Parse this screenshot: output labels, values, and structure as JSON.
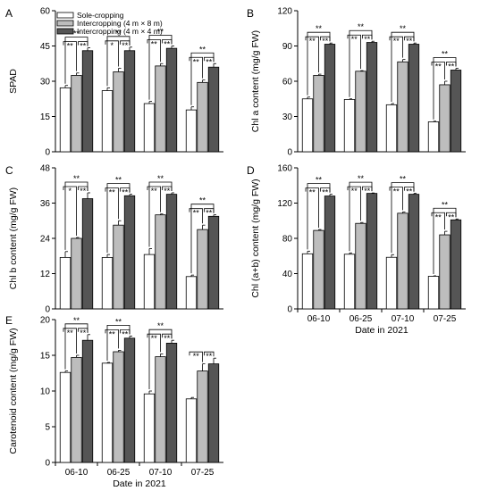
{
  "figure": {
    "legend": [
      {
        "label": "Sole-cropping",
        "color": "#ffffff"
      },
      {
        "label": "Intercropping (4 m × 8 m)",
        "color": "#bdbdbd"
      },
      {
        "label": "Intercropping (4 m × 4 m)",
        "color": "#555555"
      }
    ],
    "xlabel": "Date in 2021",
    "categories": [
      "06-10",
      "06-25",
      "07-10",
      "07-25"
    ]
  },
  "chart_data": [
    {
      "panel": "A",
      "type": "bar",
      "ylabel": "SPAD",
      "ylim": [
        0,
        60
      ],
      "yticks": [
        0,
        15,
        30,
        45,
        60
      ],
      "categories": [
        "06-10",
        "06-25",
        "07-10",
        "07-25"
      ],
      "series": [
        {
          "name": "Sole-cropping",
          "values": [
            27.2,
            26.0,
            20.5,
            17.8
          ],
          "errors": [
            1.0,
            1.2,
            0.9,
            1.3
          ]
        },
        {
          "name": "Intercropping (4 m × 8 m)",
          "values": [
            32.5,
            34.0,
            36.5,
            29.5
          ],
          "errors": [
            1.0,
            1.5,
            1.0,
            1.0
          ]
        },
        {
          "name": "Intercropping (4 m × 4 m)",
          "values": [
            43.0,
            43.0,
            44.0,
            36.0
          ],
          "errors": [
            1.2,
            1.5,
            1.0,
            1.5
          ]
        }
      ],
      "annotations": [
        {
          "cat": 0,
          "top": "**",
          "left": "**",
          "right": "**"
        },
        {
          "cat": 1,
          "top": "**",
          "left": "*",
          "right": "**"
        },
        {
          "cat": 2,
          "top": "**",
          "left": "**",
          "right": "**"
        },
        {
          "cat": 3,
          "top": "**",
          "left": "**",
          "right": "**"
        }
      ]
    },
    {
      "panel": "B",
      "type": "bar",
      "ylabel": "Chl a content  (mg/g FW)",
      "ylim": [
        0,
        120
      ],
      "yticks": [
        0,
        30,
        60,
        90,
        120
      ],
      "categories": [
        "06-10",
        "06-25",
        "07-10",
        "07-25"
      ],
      "series": [
        {
          "name": "Sole-cropping",
          "values": [
            45.0,
            44.5,
            40.0,
            25.5
          ],
          "errors": [
            1.5,
            0.5,
            1.0,
            0.5
          ]
        },
        {
          "name": "Intercropping (4 m × 8 m)",
          "values": [
            65.0,
            68.5,
            76.5,
            57.0
          ],
          "errors": [
            1.0,
            0.5,
            2.0,
            3.0
          ]
        },
        {
          "name": "Intercropping (4 m × 4 m)",
          "values": [
            91.5,
            93.0,
            91.5,
            69.5
          ],
          "errors": [
            1.0,
            1.0,
            1.0,
            1.5
          ]
        }
      ],
      "annotations": [
        {
          "cat": 0,
          "top": "**",
          "left": "**",
          "right": "**"
        },
        {
          "cat": 1,
          "top": "**",
          "left": "**",
          "right": "**"
        },
        {
          "cat": 2,
          "top": "**",
          "left": "**",
          "right": "**"
        },
        {
          "cat": 3,
          "top": "**",
          "left": "**",
          "right": "**"
        }
      ]
    },
    {
      "panel": "C",
      "type": "bar",
      "ylabel": "Chl b content  (mg/g FW)",
      "ylim": [
        0,
        48
      ],
      "yticks": [
        0,
        12,
        24,
        36,
        48
      ],
      "categories": [
        "06-10",
        "06-25",
        "07-10",
        "07-25"
      ],
      "series": [
        {
          "name": "Sole-cropping",
          "values": [
            17.5,
            17.5,
            18.5,
            11.0
          ],
          "errors": [
            2.0,
            1.0,
            2.0,
            0.5
          ]
        },
        {
          "name": "Intercropping (4 m × 8 m)",
          "values": [
            24.0,
            28.5,
            32.0,
            27.0
          ],
          "errors": [
            0.3,
            1.5,
            0.3,
            1.5
          ]
        },
        {
          "name": "Intercropping (4 m × 4 m)",
          "values": [
            37.5,
            38.5,
            39.0,
            31.5
          ],
          "errors": [
            2.0,
            0.5,
            0.5,
            0.5
          ]
        }
      ],
      "annotations": [
        {
          "cat": 0,
          "top": "**",
          "left": "*",
          "right": "**"
        },
        {
          "cat": 1,
          "top": "**",
          "left": "**",
          "right": "**"
        },
        {
          "cat": 2,
          "top": "**",
          "left": "**",
          "right": "**"
        },
        {
          "cat": 3,
          "top": "**",
          "left": "**",
          "right": "**"
        }
      ]
    },
    {
      "panel": "D",
      "type": "bar",
      "ylabel": "Chl (a+b) content  (mg/g FW)",
      "ylim": [
        0,
        160
      ],
      "yticks": [
        0,
        40,
        80,
        120,
        160
      ],
      "categories": [
        "06-10",
        "06-25",
        "07-10",
        "07-25"
      ],
      "series": [
        {
          "name": "Sole-cropping",
          "values": [
            62.5,
            62.0,
            58.5,
            37.0
          ],
          "errors": [
            3.0,
            1.5,
            3.0,
            0.5
          ]
        },
        {
          "name": "Intercropping (4 m × 8 m)",
          "values": [
            89.0,
            97.0,
            108.5,
            84.0
          ],
          "errors": [
            1.0,
            1.0,
            1.5,
            4.0
          ]
        },
        {
          "name": "Intercropping (4 m × 4 m)",
          "values": [
            128.0,
            131.0,
            130.0,
            101.0
          ],
          "errors": [
            2.0,
            0.5,
            1.0,
            1.0
          ]
        }
      ],
      "annotations": [
        {
          "cat": 0,
          "top": "**",
          "left": "**",
          "right": "**"
        },
        {
          "cat": 1,
          "top": "**",
          "left": "**",
          "right": "**"
        },
        {
          "cat": 2,
          "top": "**",
          "left": "**",
          "right": "**"
        },
        {
          "cat": 3,
          "top": "**",
          "left": "**",
          "right": "**"
        }
      ]
    },
    {
      "panel": "E",
      "type": "bar",
      "ylabel": "Carotenoid content  (mg/g FW)",
      "ylim": [
        0,
        20
      ],
      "yticks": [
        0,
        5,
        10,
        15,
        20
      ],
      "categories": [
        "06-10",
        "06-25",
        "07-10",
        "07-25"
      ],
      "series": [
        {
          "name": "Sole-cropping",
          "values": [
            12.6,
            13.9,
            9.6,
            8.9
          ],
          "errors": [
            0.2,
            0.1,
            0.4,
            0.2
          ]
        },
        {
          "name": "Intercropping (4 m × 8 m)",
          "values": [
            14.7,
            15.5,
            14.8,
            12.8
          ],
          "errors": [
            0.3,
            0.2,
            0.4,
            1.0
          ]
        },
        {
          "name": "Intercropping (4 m × 4 m)",
          "values": [
            17.1,
            17.4,
            16.7,
            13.8
          ],
          "errors": [
            0.8,
            0.3,
            0.4,
            0.8
          ]
        }
      ],
      "annotations": [
        {
          "cat": 0,
          "top": "**",
          "left": "**",
          "right": "**"
        },
        {
          "cat": 1,
          "top": "**",
          "left": "**",
          "right": "**"
        },
        {
          "cat": 2,
          "top": "**",
          "left": "**",
          "right": "**"
        },
        {
          "cat": 3,
          "top": "",
          "left": "**",
          "right": "**"
        }
      ]
    }
  ]
}
